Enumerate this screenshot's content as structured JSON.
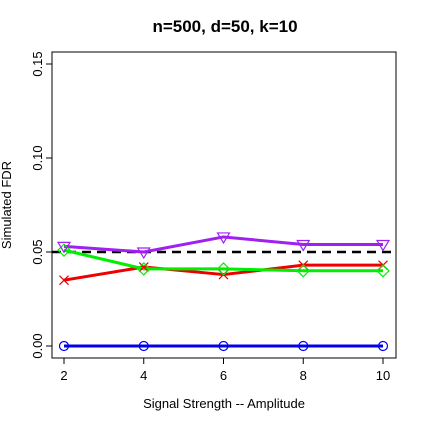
{
  "chart_data": {
    "type": "line",
    "title": "n=500, d=50, k=10",
    "xlabel": "Signal Strength -- Amplitude",
    "ylabel": "Simulated FDR",
    "x": [
      2,
      4,
      6,
      8,
      10
    ],
    "xlim": [
      2,
      10
    ],
    "ylim": [
      0,
      0.15
    ],
    "xticks": [
      2,
      4,
      6,
      8,
      10
    ],
    "yticks": [
      0.0,
      0.05,
      0.1,
      0.15
    ],
    "ytick_labels": [
      "0.00",
      "0.05",
      "0.10",
      "0.15"
    ],
    "grid": false,
    "reference_line": {
      "y": 0.05,
      "style": "dashed",
      "color": "#000000"
    },
    "series": [
      {
        "values": [
          0.035,
          0.042,
          0.038,
          0.043,
          0.043
        ],
        "color": "#ee0000",
        "marker": "x"
      },
      {
        "values": [
          0.051,
          0.041,
          0.041,
          0.04,
          0.04
        ],
        "color": "#00ee00",
        "marker": "diamond"
      },
      {
        "values": [
          0.053,
          0.05,
          0.058,
          0.054,
          0.054
        ],
        "color": "#a020f0",
        "marker": "triangle-down"
      },
      {
        "values": [
          0.0,
          0.0,
          0.0,
          0.0,
          0.0
        ],
        "color": "#0000ee",
        "marker": "circle"
      }
    ]
  }
}
